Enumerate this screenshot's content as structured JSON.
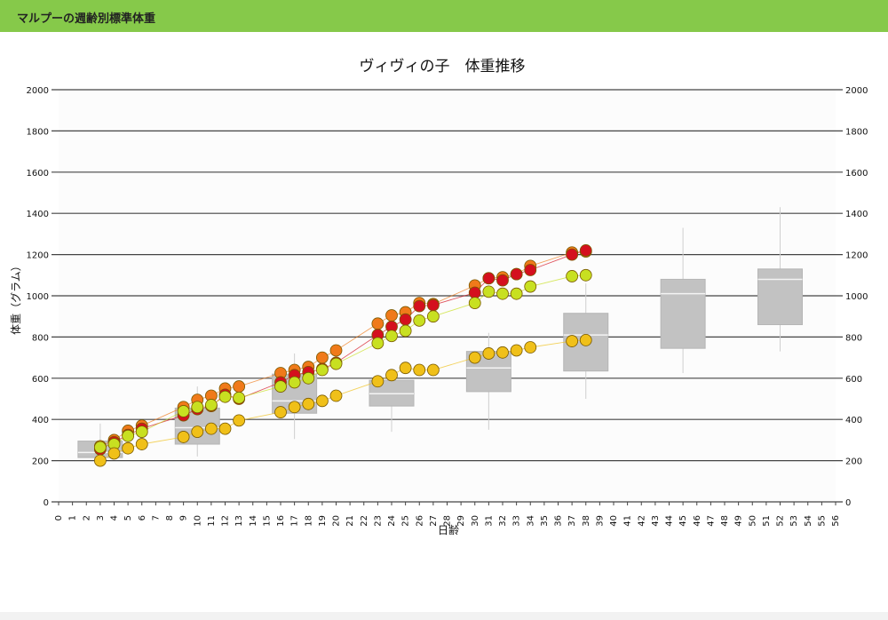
{
  "header": {
    "title": "マルプーの週齢別標準体重"
  },
  "chart_data": {
    "type": "scatter",
    "title": "ヴィヴィの子　体重推移",
    "xlabel": "日齢",
    "ylabel": "体重（グラム）",
    "xlim": [
      0,
      56
    ],
    "ylim": [
      0,
      2000
    ],
    "yticks": [
      0,
      200,
      400,
      600,
      800,
      1000,
      1200,
      1400,
      1600,
      1800,
      2000
    ],
    "xticks": [
      0,
      1,
      2,
      3,
      4,
      5,
      6,
      7,
      8,
      9,
      10,
      11,
      12,
      13,
      14,
      15,
      16,
      17,
      18,
      19,
      20,
      21,
      22,
      23,
      24,
      25,
      26,
      27,
      28,
      29,
      30,
      31,
      32,
      33,
      34,
      35,
      36,
      37,
      38,
      39,
      40,
      41,
      42,
      43,
      44,
      45,
      46,
      47,
      48,
      49,
      50,
      51,
      52,
      53,
      54,
      55,
      56
    ],
    "grid": true,
    "boxplots": [
      {
        "day": 3,
        "min": 190,
        "q1": 215,
        "median": 240,
        "q3": 295,
        "max": 380
      },
      {
        "day": 10,
        "min": 220,
        "q1": 280,
        "median": 360,
        "q3": 455,
        "max": 560
      },
      {
        "day": 17,
        "min": 305,
        "q1": 430,
        "median": 490,
        "q3": 620,
        "max": 720
      },
      {
        "day": 24,
        "min": 340,
        "q1": 465,
        "median": 525,
        "q3": 590,
        "max": 640
      },
      {
        "day": 31,
        "min": 350,
        "q1": 535,
        "median": 650,
        "q3": 730,
        "max": 820
      },
      {
        "day": 38,
        "min": 500,
        "q1": 635,
        "median": 810,
        "q3": 915,
        "max": 1060
      },
      {
        "day": 45,
        "min": 625,
        "q1": 745,
        "median": 1010,
        "q3": 1080,
        "max": 1330
      },
      {
        "day": 52,
        "min": 730,
        "q1": 860,
        "median": 1080,
        "q3": 1130,
        "max": 1430
      }
    ],
    "series": [
      {
        "color": "#f07a1a",
        "points": [
          [
            3,
            270
          ],
          [
            4,
            300
          ],
          [
            5,
            345
          ],
          [
            6,
            370
          ],
          [
            9,
            460
          ],
          [
            10,
            495
          ],
          [
            11,
            515
          ],
          [
            12,
            550
          ],
          [
            13,
            560
          ],
          [
            16,
            625
          ],
          [
            17,
            640
          ],
          [
            18,
            655
          ],
          [
            19,
            700
          ],
          [
            20,
            735
          ],
          [
            23,
            865
          ],
          [
            24,
            905
          ],
          [
            25,
            920
          ],
          [
            26,
            965
          ],
          [
            27,
            960
          ],
          [
            30,
            1050
          ],
          [
            31,
            1085
          ],
          [
            32,
            1090
          ],
          [
            33,
            1105
          ],
          [
            34,
            1145
          ],
          [
            37,
            1210
          ],
          [
            38,
            1215
          ]
        ]
      },
      {
        "color": "#d4101e",
        "points": [
          [
            3,
            255
          ],
          [
            4,
            290
          ],
          [
            5,
            325
          ],
          [
            6,
            355
          ],
          [
            9,
            420
          ],
          [
            10,
            450
          ],
          [
            11,
            465
          ],
          [
            12,
            520
          ],
          [
            13,
            500
          ],
          [
            16,
            580
          ],
          [
            17,
            615
          ],
          [
            18,
            630
          ],
          [
            19,
            645
          ],
          [
            20,
            675
          ],
          [
            23,
            810
          ],
          [
            24,
            850
          ],
          [
            25,
            885
          ],
          [
            26,
            950
          ],
          [
            27,
            955
          ],
          [
            30,
            1015
          ],
          [
            31,
            1085
          ],
          [
            32,
            1075
          ],
          [
            33,
            1105
          ],
          [
            34,
            1125
          ],
          [
            37,
            1200
          ],
          [
            38,
            1220
          ]
        ]
      },
      {
        "color": "#c8e021",
        "points": [
          [
            3,
            265
          ],
          [
            4,
            280
          ],
          [
            5,
            320
          ],
          [
            6,
            340
          ],
          [
            9,
            440
          ],
          [
            10,
            460
          ],
          [
            11,
            470
          ],
          [
            12,
            510
          ],
          [
            13,
            505
          ],
          [
            16,
            560
          ],
          [
            17,
            580
          ],
          [
            18,
            600
          ],
          [
            19,
            640
          ],
          [
            20,
            670
          ],
          [
            23,
            770
          ],
          [
            24,
            805
          ],
          [
            25,
            830
          ],
          [
            26,
            880
          ],
          [
            27,
            900
          ],
          [
            30,
            965
          ],
          [
            31,
            1020
          ],
          [
            32,
            1010
          ],
          [
            33,
            1010
          ],
          [
            34,
            1045
          ],
          [
            37,
            1095
          ],
          [
            38,
            1100
          ]
        ]
      },
      {
        "color": "#f0c019",
        "points": [
          [
            3,
            200
          ],
          [
            4,
            235
          ],
          [
            5,
            260
          ],
          [
            6,
            280
          ],
          [
            9,
            315
          ],
          [
            10,
            340
          ],
          [
            11,
            355
          ],
          [
            12,
            355
          ],
          [
            13,
            395
          ],
          [
            16,
            435
          ],
          [
            17,
            460
          ],
          [
            18,
            475
          ],
          [
            19,
            490
          ],
          [
            20,
            515
          ],
          [
            23,
            585
          ],
          [
            24,
            615
          ],
          [
            25,
            650
          ],
          [
            26,
            640
          ],
          [
            27,
            640
          ],
          [
            30,
            700
          ],
          [
            31,
            720
          ],
          [
            32,
            725
          ],
          [
            33,
            735
          ],
          [
            34,
            750
          ],
          [
            37,
            780
          ],
          [
            38,
            785
          ]
        ]
      }
    ]
  }
}
